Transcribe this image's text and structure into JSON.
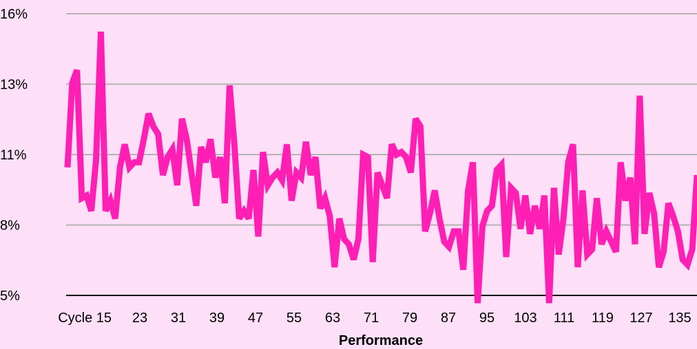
{
  "chart_data": {
    "type": "line",
    "title": "",
    "xlabel": "Performance",
    "ylabel": "",
    "x_tick_labels": [
      "Cycle 15",
      "23",
      "31",
      "39",
      "47",
      "55",
      "63",
      "71",
      "79",
      "87",
      "95",
      "103",
      "111",
      "119",
      "127",
      "135"
    ],
    "y_tick_labels": [
      "5%",
      "8%",
      "11%",
      "13%",
      "16%"
    ],
    "ylim": [
      5,
      16
    ],
    "grid": "horizontal",
    "legend": "none",
    "colors": {
      "background": "#fde0f7",
      "line": "#ff1fb4",
      "grid": "#b3b3b3",
      "axis": "#000000"
    },
    "series": [
      {
        "values": [
          10.0,
          13.3,
          13.8,
          8.8,
          8.9,
          8.3,
          10.3,
          15.3,
          8.3,
          8.7,
          8.0,
          10.0,
          10.9,
          10.0,
          10.2,
          10.2,
          11.1,
          12.1,
          11.6,
          11.3,
          9.7,
          10.4,
          10.7,
          9.3,
          11.9,
          11.1,
          9.8,
          8.5,
          10.8,
          10.2,
          11.1,
          9.6,
          10.4,
          8.6,
          13.2,
          10.9,
          8.0,
          8.3,
          8.0,
          9.9,
          7.3,
          10.6,
          9.3,
          9.6,
          9.8,
          9.5,
          10.9,
          8.7,
          9.8,
          9.6,
          11.0,
          9.7,
          10.4,
          8.4,
          8.8,
          8.1,
          6.1,
          8.0,
          7.2,
          7.0,
          6.4,
          7.2,
          10.5,
          10.4,
          6.3,
          9.8,
          9.3,
          8.8,
          10.9,
          10.5,
          10.6,
          10.4,
          9.8,
          11.9,
          11.6,
          7.5,
          8.2,
          9.1,
          8.0,
          7.1,
          6.9,
          7.5,
          7.5,
          6.0,
          9.1,
          10.2,
          4.7,
          7.7,
          8.3,
          8.5,
          9.9,
          10.1,
          6.5,
          9.2,
          9.0,
          7.6,
          8.9,
          7.4,
          8.5,
          7.6,
          8.9,
          4.7,
          9.2,
          6.6,
          8.0,
          10.2,
          10.9,
          6.1,
          9.1,
          6.6,
          6.8,
          8.8,
          7.0,
          7.5,
          7.1,
          6.7,
          10.2,
          8.7,
          9.6,
          7.0,
          12.8,
          7.4,
          9.0,
          8.2,
          6.1,
          6.7,
          8.6,
          8.1,
          7.5,
          6.4,
          6.2,
          6.8,
          9.7
        ]
      }
    ]
  }
}
